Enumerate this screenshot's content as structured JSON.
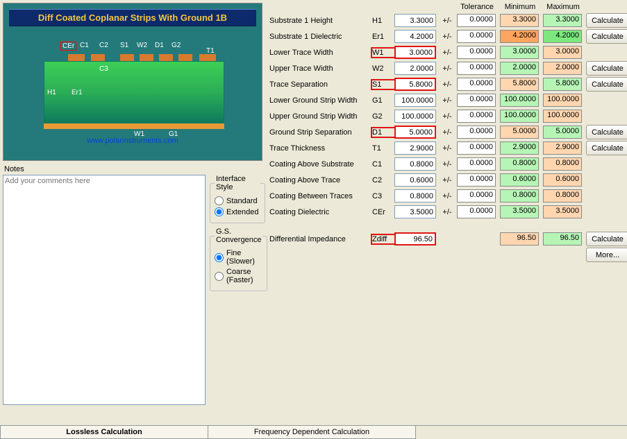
{
  "diagram": {
    "title": "Diff Coated Coplanar Strips With Ground  1B",
    "url": "www.polarinstruments.com",
    "labels": {
      "cer": "CEr",
      "c1": "C1",
      "c2": "C2",
      "s1": "S1",
      "w2": "W2",
      "d1": "D1",
      "g2": "G2",
      "t1": "T1",
      "c3": "C3",
      "h1": "H1",
      "er1": "Er1",
      "w1": "W1",
      "g1": "G1"
    }
  },
  "columns": {
    "tol": "Tolerance",
    "min": "Minimum",
    "max": "Maximum"
  },
  "params": [
    {
      "label": "Substrate 1 Height",
      "sym": "H1",
      "val": "3.3000",
      "tol": "0.0000",
      "min": "3.3000",
      "max": "3.3000",
      "calc": true,
      "hl": false,
      "minC": "min",
      "maxC": "max"
    },
    {
      "label": "Substrate 1 Dielectric",
      "sym": "Er1",
      "val": "4.2000",
      "tol": "0.0000",
      "min": "4.2000",
      "max": "4.2000",
      "calc": true,
      "hl": false,
      "minC": "min-dark",
      "maxC": "max-dark"
    },
    {
      "label": "Lower Trace Width",
      "sym": "W1",
      "val": "3.0000",
      "tol": "0.0000",
      "min": "3.0000",
      "max": "3.0000",
      "calc": false,
      "hl": true,
      "minC": "max",
      "maxC": "min"
    },
    {
      "label": "Upper Trace Width",
      "sym": "W2",
      "val": "2.0000",
      "tol": "0.0000",
      "min": "2.0000",
      "max": "2.0000",
      "calc": true,
      "hl": false,
      "minC": "max",
      "maxC": "min"
    },
    {
      "label": "Trace Separation",
      "sym": "S1",
      "val": "5.8000",
      "tol": "0.0000",
      "min": "5.8000",
      "max": "5.8000",
      "calc": true,
      "hl": true,
      "minC": "min",
      "maxC": "max"
    },
    {
      "label": "Lower Ground Strip Width",
      "sym": "G1",
      "val": "100.0000",
      "tol": "0.0000",
      "min": "100.0000",
      "max": "100.0000",
      "calc": false,
      "hl": false,
      "minC": "max-dark",
      "maxC": "min-dark"
    },
    {
      "label": "Upper Ground Strip Width",
      "sym": "G2",
      "val": "100.0000",
      "tol": "0.0000",
      "min": "100.0000",
      "max": "100.0000",
      "calc": false,
      "hl": false,
      "minC": "max-dark",
      "maxC": "min-dark"
    },
    {
      "label": "Ground Strip Separation",
      "sym": "D1",
      "val": "5.0000",
      "tol": "0.0000",
      "min": "5.0000",
      "max": "5.0000",
      "calc": true,
      "hl": true,
      "minC": "min",
      "maxC": "max"
    },
    {
      "label": "Trace Thickness",
      "sym": "T1",
      "val": "2.9000",
      "tol": "0.0000",
      "min": "2.9000",
      "max": "2.9000",
      "calc": true,
      "hl": false,
      "minC": "max-dark",
      "maxC": "min-dark"
    },
    {
      "label": "Coating Above Substrate",
      "sym": "C1",
      "val": "0.8000",
      "tol": "0.0000",
      "min": "0.8000",
      "max": "0.8000",
      "calc": false,
      "hl": false,
      "minC": "max",
      "maxC": "min"
    },
    {
      "label": "Coating Above Trace",
      "sym": "C2",
      "val": "0.6000",
      "tol": "0.0000",
      "min": "0.6000",
      "max": "0.6000",
      "calc": false,
      "hl": false,
      "minC": "max",
      "maxC": "min"
    },
    {
      "label": "Coating Between Traces",
      "sym": "C3",
      "val": "0.8000",
      "tol": "0.0000",
      "min": "0.8000",
      "max": "0.8000",
      "calc": false,
      "hl": false,
      "minC": "max",
      "maxC": "min"
    },
    {
      "label": "Coating Dielectric",
      "sym": "CEr",
      "val": "3.5000",
      "tol": "0.0000",
      "min": "3.5000",
      "max": "3.5000",
      "calc": false,
      "hl": false,
      "minC": "max",
      "maxC": "min"
    }
  ],
  "result": {
    "label": "Differential Impedance",
    "sym": "Zdiff",
    "val": "96.50",
    "min": "96.50",
    "max": "96.50",
    "hl": true
  },
  "buttons": {
    "calc": "Calculate",
    "more": "More..."
  },
  "notes": {
    "label": "Notes",
    "placeholder": "Add your comments here"
  },
  "interfaceStyle": {
    "legend": "Interface Style",
    "standard": "Standard",
    "extended": "Extended",
    "selected": "extended"
  },
  "convergence": {
    "legend": "G.S. Convergence",
    "fine": "Fine (Slower)",
    "coarse": "Coarse (Faster)",
    "selected": "fine"
  },
  "tabs": {
    "lossless": "Lossless Calculation",
    "freq": "Frequency Dependent Calculation"
  },
  "colors": {
    "min": "#ffd6b0",
    "max": "#b6f5b6",
    "minDark": "#ffa560",
    "maxDark": "#7de87d"
  }
}
